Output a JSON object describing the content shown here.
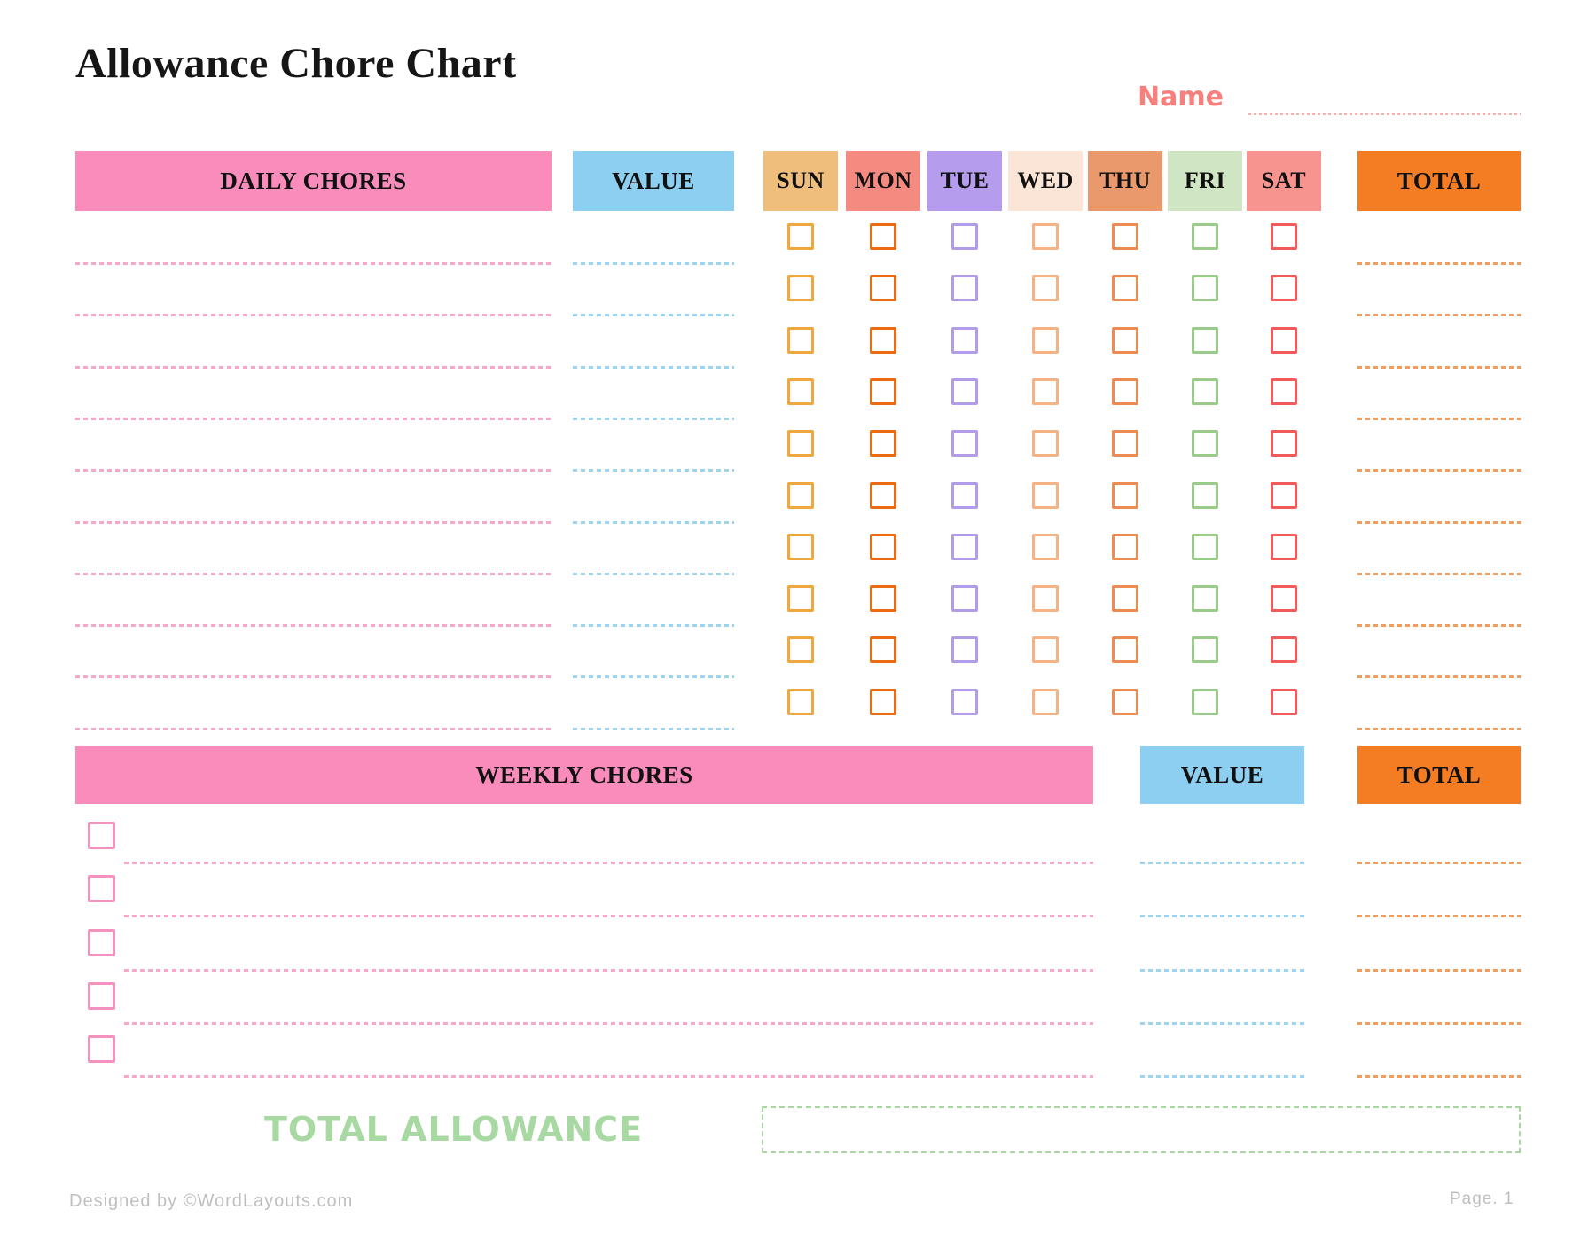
{
  "title": "Allowance Chore Chart",
  "name_field": {
    "label": "Name"
  },
  "daily": {
    "chores_header": "DAILY CHORES",
    "value_header": "VALUE",
    "total_header": "TOTAL",
    "rows": 10,
    "days": [
      {
        "label": "SUN",
        "bg": "#EFBE7D",
        "box": "#F0A73E"
      },
      {
        "label": "MON",
        "bg": "#F48A80",
        "box": "#EC6A12"
      },
      {
        "label": "TUE",
        "bg": "#B59CEC",
        "box": "#B29BE8"
      },
      {
        "label": "WED",
        "bg": "#FBE5D6",
        "box": "#F4B285"
      },
      {
        "label": "THU",
        "bg": "#E9996B",
        "box": "#EC8B52"
      },
      {
        "label": "FRI",
        "bg": "#CFE5C3",
        "box": "#9BCB88"
      },
      {
        "label": "SAT",
        "bg": "#F79490",
        "box": "#F15B5B"
      }
    ]
  },
  "weekly": {
    "chores_header": "WEEKLY CHORES",
    "value_header": "VALUE",
    "total_header": "TOTAL",
    "rows": 5,
    "checkbox_color": "#F491BE"
  },
  "total_allowance": {
    "label": "TOTAL ALLOWANCE"
  },
  "footer": {
    "left": "Designed by ©WordLayouts.com",
    "right": "Page. 1"
  },
  "colors": {
    "pink_bar": "#F98CBB",
    "blue_bar": "#8DCFF0",
    "orange_bar": "#F47C22",
    "pink_line": "#F9A6CB",
    "blue_line": "#9BD4F1",
    "orange_line": "#F59C58",
    "name_accent": "#F97F7C",
    "name_line": "#FBAFAC",
    "green_accent": "#A9D9A2",
    "footer_gray": "#BFBFBF"
  }
}
